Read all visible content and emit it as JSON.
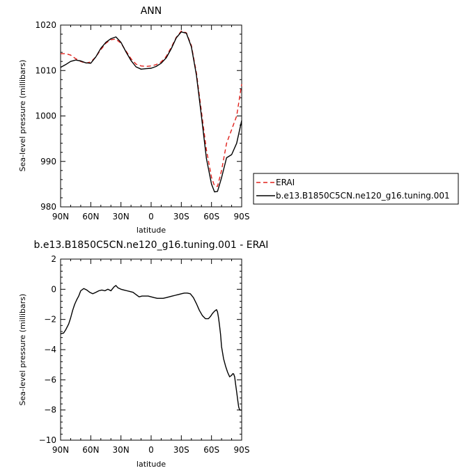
{
  "chart_data": [
    {
      "type": "line",
      "title": "ANN",
      "xlabel": "latitude",
      "ylabel": "Sea-level pressure (millibars)",
      "xlim": [
        90,
        -90
      ],
      "ylim": [
        980,
        1020
      ],
      "x_ticks": [
        90,
        60,
        30,
        0,
        -30,
        -60,
        -90
      ],
      "x_tick_labels": [
        "90N",
        "60N",
        "30N",
        "0",
        "30S",
        "60S",
        "90S"
      ],
      "y_ticks": [
        980,
        990,
        1000,
        1010,
        1020
      ],
      "y_tick_labels": [
        "980",
        "990",
        "1000",
        "1010",
        "1020"
      ],
      "legend": "right",
      "series": [
        {
          "name": "ERAI",
          "color": "#e0201b",
          "dash": "dashed",
          "x": [
            90,
            85,
            80,
            75,
            70,
            65,
            60,
            55,
            50,
            45,
            40,
            35,
            30,
            25,
            20,
            15,
            10,
            5,
            0,
            -5,
            -10,
            -15,
            -20,
            -25,
            -30,
            -35,
            -40,
            -45,
            -50,
            -55,
            -60,
            -63,
            -66,
            -70,
            -75,
            -80,
            -85,
            -90
          ],
          "y": [
            1013.7,
            1013.7,
            1013.4,
            1012.6,
            1012.0,
            1011.6,
            1011.9,
            1013.0,
            1014.6,
            1016.0,
            1016.8,
            1016.9,
            1016.0,
            1014.3,
            1012.6,
            1011.4,
            1011.0,
            1010.9,
            1011.0,
            1011.3,
            1011.9,
            1013.1,
            1015.1,
            1017.3,
            1018.7,
            1018.3,
            1015.5,
            1009.5,
            1001.0,
            992.5,
            986.5,
            984.6,
            984.5,
            988.0,
            994.0,
            997.0,
            1000.0,
            1007.0
          ]
        },
        {
          "name": "b.e13.B1850C5CN.ne120_g16.tuning.001",
          "color": "#000000",
          "dash": "solid",
          "x": [
            90,
            85,
            80,
            75,
            70,
            65,
            60,
            55,
            50,
            45,
            40,
            35,
            30,
            25,
            20,
            15,
            10,
            5,
            0,
            -5,
            -10,
            -15,
            -20,
            -25,
            -30,
            -35,
            -40,
            -45,
            -50,
            -55,
            -60,
            -63,
            -66,
            -70,
            -75,
            -80,
            -85,
            -90
          ],
          "y": [
            1010.7,
            1011.3,
            1012.0,
            1012.3,
            1012.1,
            1011.7,
            1011.6,
            1013.0,
            1014.9,
            1016.2,
            1017.0,
            1017.4,
            1016.2,
            1014.1,
            1012.2,
            1010.8,
            1010.3,
            1010.4,
            1010.5,
            1010.9,
            1011.6,
            1012.8,
            1014.8,
            1017.2,
            1018.5,
            1018.2,
            1015.2,
            1009.0,
            1000.0,
            990.6,
            985.0,
            983.3,
            983.4,
            986.4,
            990.8,
            991.5,
            994.0,
            999.0
          ]
        }
      ]
    },
    {
      "type": "line",
      "title": "b.e13.B1850C5CN.ne120_g16.tuning.001  -  ERAI",
      "xlabel": "latitude",
      "ylabel": "Sea-level pressure (millibars)",
      "xlim": [
        90,
        -90
      ],
      "ylim": [
        -10,
        2
      ],
      "x_ticks": [
        90,
        60,
        30,
        0,
        -30,
        -60,
        -90
      ],
      "x_tick_labels": [
        "90N",
        "60N",
        "30N",
        "0",
        "30S",
        "60S",
        "90S"
      ],
      "y_ticks": [
        -10,
        -8,
        -6,
        -4,
        -2,
        0,
        2
      ],
      "y_tick_labels": [
        "−10",
        "−8",
        "−6",
        "−4",
        "−2",
        "0",
        "2"
      ],
      "series": [
        {
          "color": "#000000",
          "dash": "solid",
          "x": [
            90,
            87,
            85,
            82,
            80,
            78,
            76,
            74,
            72,
            70,
            67,
            64,
            61,
            58,
            55,
            52,
            49,
            46,
            43,
            40,
            37,
            35,
            33,
            30,
            27,
            24,
            21,
            18,
            15,
            12,
            9,
            6,
            3,
            0,
            -3,
            -6,
            -9,
            -12,
            -15,
            -18,
            -21,
            -24,
            -27,
            -30,
            -33,
            -36,
            -39,
            -42,
            -45,
            -48,
            -51,
            -54,
            -57,
            -59,
            -61,
            -63,
            -65,
            -66,
            -67,
            -68,
            -69,
            -70,
            -72,
            -74,
            -76,
            -78,
            -80,
            -81,
            -82,
            -83,
            -84,
            -85,
            -86,
            -87,
            -88,
            -89,
            -90
          ],
          "y": [
            -2.95,
            -2.9,
            -2.7,
            -2.3,
            -1.9,
            -1.4,
            -1.0,
            -0.7,
            -0.45,
            -0.1,
            0.05,
            -0.05,
            -0.2,
            -0.3,
            -0.2,
            -0.1,
            -0.05,
            -0.1,
            0.0,
            -0.1,
            0.15,
            0.25,
            0.1,
            0.0,
            -0.05,
            -0.1,
            -0.15,
            -0.2,
            -0.35,
            -0.5,
            -0.45,
            -0.45,
            -0.45,
            -0.5,
            -0.55,
            -0.6,
            -0.6,
            -0.6,
            -0.55,
            -0.5,
            -0.45,
            -0.4,
            -0.35,
            -0.3,
            -0.25,
            -0.25,
            -0.3,
            -0.55,
            -0.95,
            -1.4,
            -1.75,
            -1.95,
            -1.95,
            -1.8,
            -1.6,
            -1.45,
            -1.35,
            -1.5,
            -1.9,
            -2.4,
            -3.0,
            -3.8,
            -4.6,
            -5.1,
            -5.5,
            -5.8,
            -5.7,
            -5.6,
            -5.6,
            -5.8,
            -6.3,
            -6.8,
            -7.3,
            -7.8,
            -8.0,
            -8.0,
            -8.0
          ]
        }
      ]
    }
  ]
}
